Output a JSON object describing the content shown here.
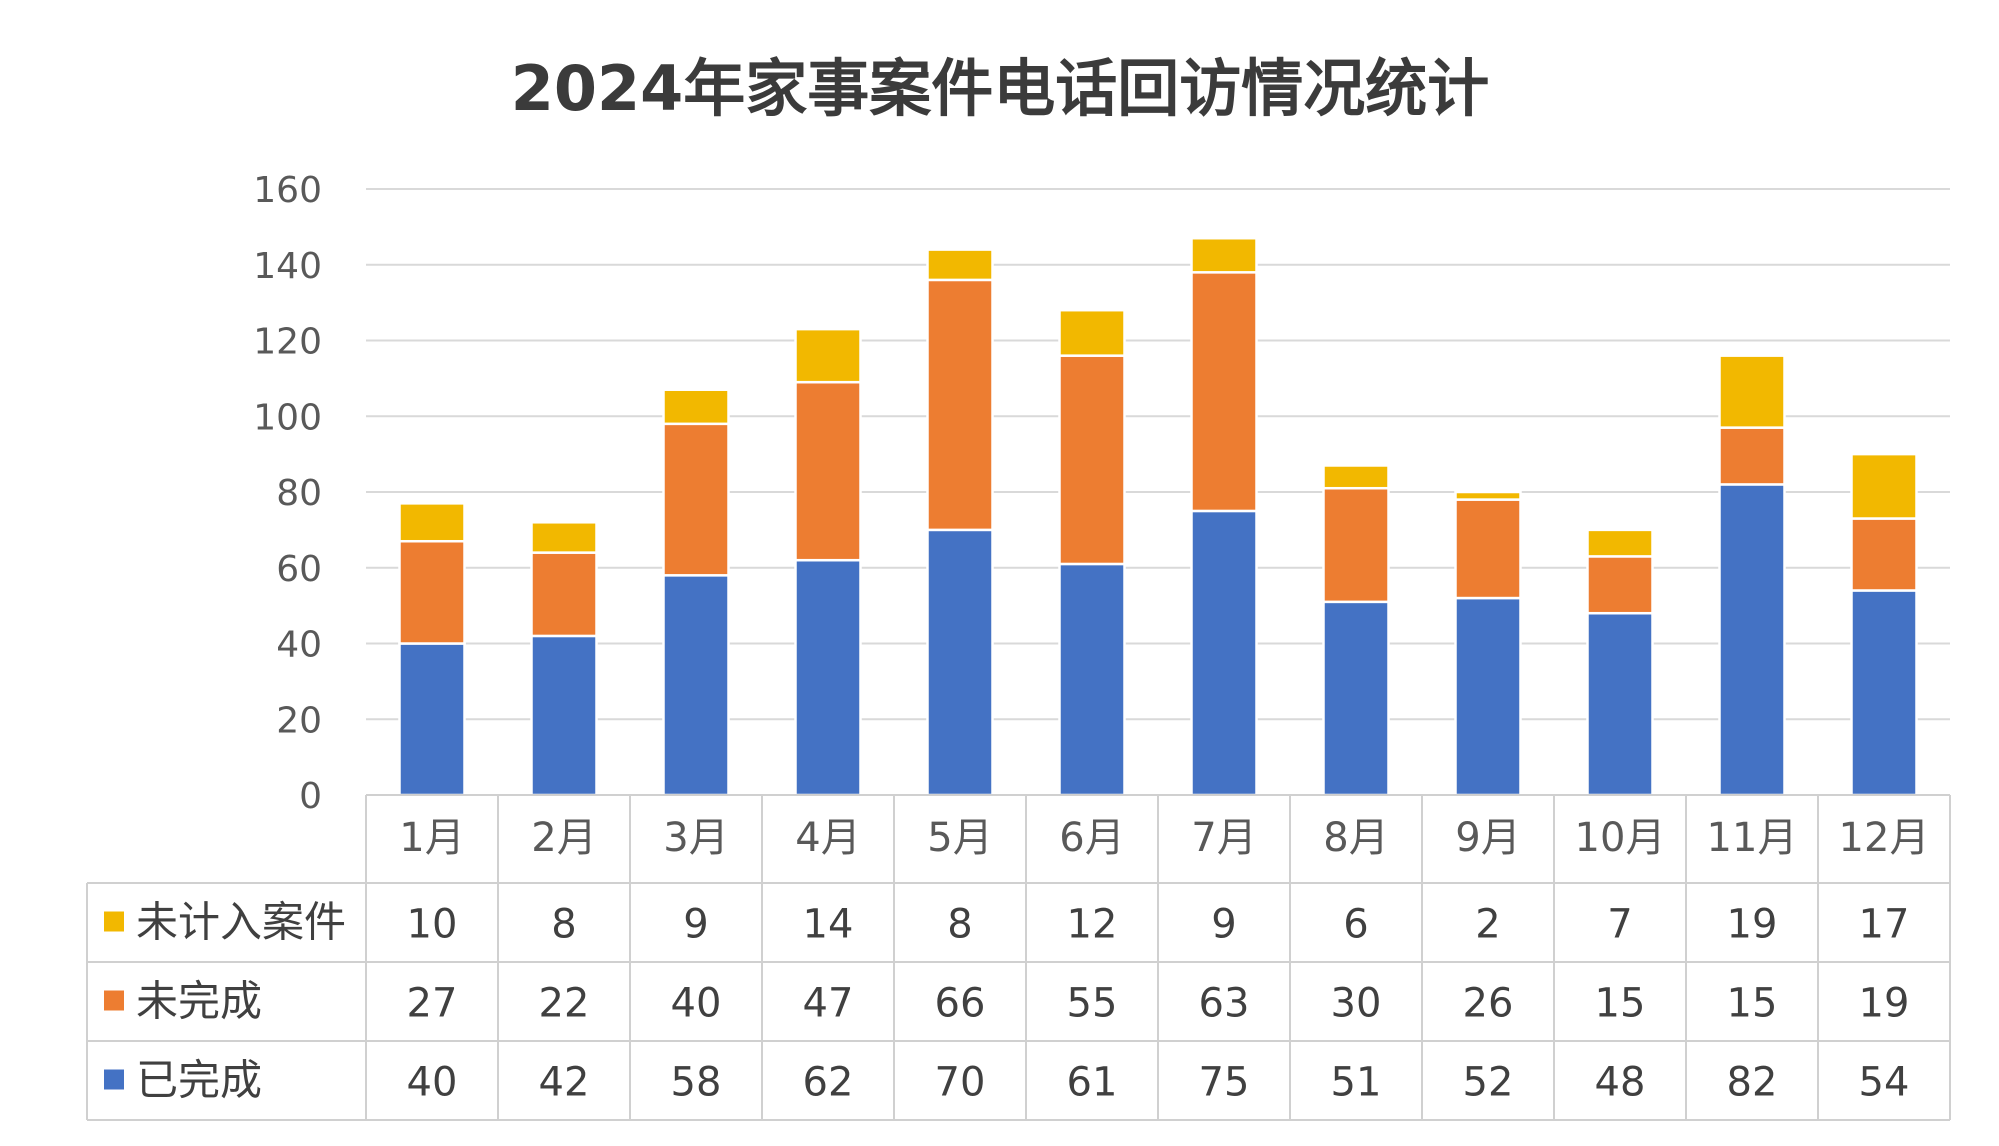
{
  "chart_data": {
    "type": "bar",
    "stacked": true,
    "title": "2024年家事案件电话回访情况统计",
    "categories": [
      "1月",
      "2月",
      "3月",
      "4月",
      "5月",
      "6月",
      "7月",
      "8月",
      "9月",
      "10月",
      "11月",
      "12月"
    ],
    "series": [
      {
        "name": "已完成",
        "color": "#4472C4",
        "values": [
          40,
          42,
          58,
          62,
          70,
          61,
          75,
          51,
          52,
          48,
          82,
          54
        ]
      },
      {
        "name": "未完成",
        "color": "#ED7D31",
        "values": [
          27,
          22,
          40,
          47,
          66,
          55,
          63,
          30,
          26,
          15,
          15,
          19
        ]
      },
      {
        "name": "未计入案件",
        "color": "#F2B800",
        "values": [
          10,
          8,
          9,
          14,
          8,
          12,
          9,
          6,
          2,
          7,
          19,
          17
        ]
      }
    ],
    "table_row_order": [
      "未计入案件",
      "未完成",
      "已完成"
    ],
    "ylim": [
      0,
      160
    ],
    "yticks": [
      0,
      20,
      40,
      60,
      80,
      100,
      120,
      140,
      160
    ],
    "grid": true,
    "legend": "data-table-left",
    "xlabel": "",
    "ylabel": ""
  }
}
